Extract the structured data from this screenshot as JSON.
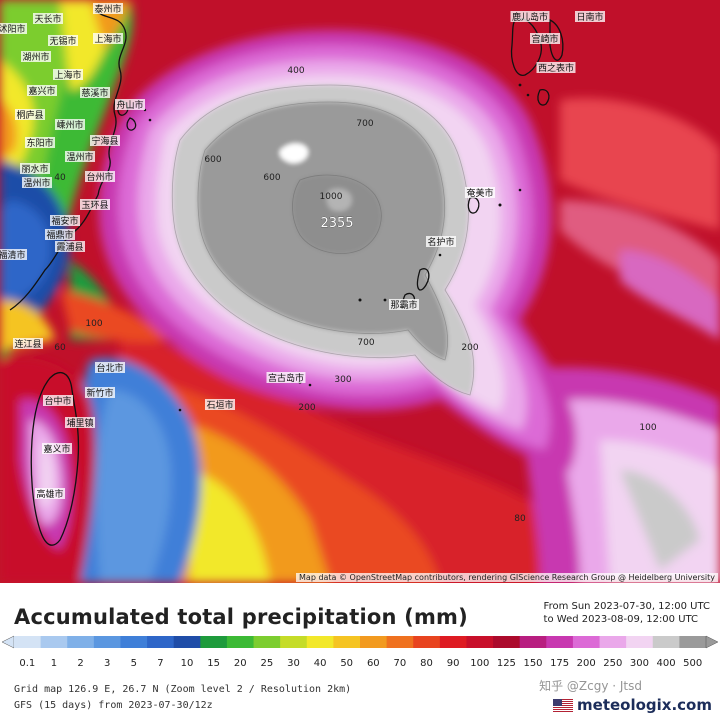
{
  "title": "Accumulated total precipitation (mm)",
  "period": {
    "from": "From Sun 2023-07-30, 12:00 UTC",
    "to": "to Wed 2023-08-09, 12:00 UTC"
  },
  "scale": {
    "values": [
      "0.1",
      "1",
      "2",
      "3",
      "5",
      "7",
      "10",
      "15",
      "20",
      "25",
      "30",
      "40",
      "50",
      "60",
      "70",
      "80",
      "90",
      "100",
      "125",
      "150",
      "175",
      "200",
      "250",
      "300",
      "400",
      "500"
    ],
    "colors": [
      "#d4e3f5",
      "#a9c9ef",
      "#7fb0e8",
      "#5b97e0",
      "#3f7fd8",
      "#2e66c8",
      "#1f4da8",
      "#1e9b3c",
      "#3cba35",
      "#7ccd2f",
      "#c5dc28",
      "#f2e82a",
      "#f5c422",
      "#f29a1f",
      "#ef711f",
      "#e8441f",
      "#de1b22",
      "#c80f2a",
      "#ac0a2c",
      "#b81e80",
      "#c838b0",
      "#dc6ad6",
      "#eaa8ea",
      "#f2d4f2",
      "#cacaca",
      "#9a9a9a"
    ]
  },
  "grid_info": "Grid map 126.9 E, 26.7 N (Zoom level 2 / Resolution 2km)",
  "model_info": "GFS (15 days) from  2023-07-30/12z",
  "attribution": "Map data © OpenStreetMap contributors, rendering GIScience Research Group @ Heidelberg University",
  "max_label": "2355",
  "contour_labels": [
    {
      "text": "400"
    },
    {
      "text": "700"
    },
    {
      "text": "600"
    },
    {
      "text": "600"
    },
    {
      "text": "1000"
    },
    {
      "text": "700"
    },
    {
      "text": "300"
    },
    {
      "text": "200"
    },
    {
      "text": "100"
    },
    {
      "text": "60"
    },
    {
      "text": "40"
    },
    {
      "text": "80"
    },
    {
      "text": "100"
    },
    {
      "text": "200"
    }
  ],
  "places": [
    {
      "text": "天长市"
    },
    {
      "text": "泰州市"
    },
    {
      "text": "沭阳市"
    },
    {
      "text": "无锡市"
    },
    {
      "text": "上海市"
    },
    {
      "text": "湖州市"
    },
    {
      "text": "上海市"
    },
    {
      "text": "嘉兴市"
    },
    {
      "text": "慈溪市"
    },
    {
      "text": "桐庐县"
    },
    {
      "text": "舟山市"
    },
    {
      "text": "嵊州市"
    },
    {
      "text": "宁海县"
    },
    {
      "text": "东阳市"
    },
    {
      "text": "温州市"
    },
    {
      "text": "台州市"
    },
    {
      "text": "丽水市"
    },
    {
      "text": "温州市"
    },
    {
      "text": "玉环县"
    },
    {
      "text": "福安市"
    },
    {
      "text": "霞浦县"
    },
    {
      "text": "福鼎市"
    },
    {
      "text": "福清市"
    },
    {
      "text": "连江县"
    },
    {
      "text": "台北市"
    },
    {
      "text": "新竹市"
    },
    {
      "text": "台中市"
    },
    {
      "text": "埔里镇"
    },
    {
      "text": "嘉义市"
    },
    {
      "text": "高雄市"
    },
    {
      "text": "宫古岛市"
    },
    {
      "text": "石垣市"
    },
    {
      "text": "那霸市"
    },
    {
      "text": "名护市"
    },
    {
      "text": "奄美市"
    },
    {
      "text": "鹿儿岛市"
    },
    {
      "text": "西之表市"
    },
    {
      "text": "日南市"
    },
    {
      "text": "宫崎市"
    }
  ],
  "watermark": "知乎 @Zcgy · Jtsd",
  "brand": "meteologix.com"
}
